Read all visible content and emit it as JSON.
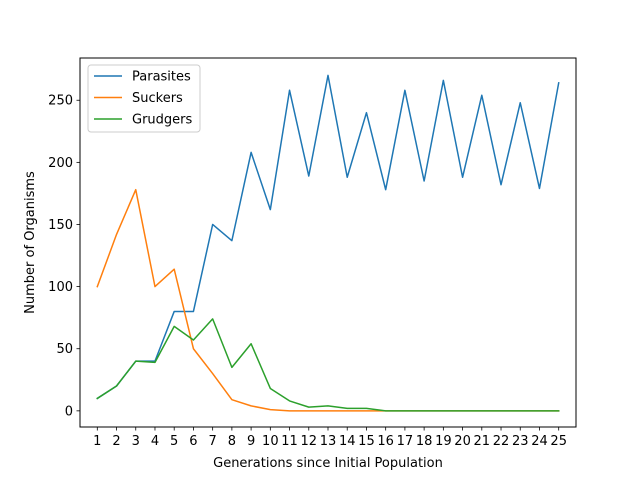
{
  "chart_data": {
    "type": "line",
    "title": "",
    "xlabel": "Generations since Initial Population",
    "ylabel": "Number of Organisms",
    "x": [
      1,
      2,
      3,
      4,
      5,
      6,
      7,
      8,
      9,
      10,
      11,
      12,
      13,
      14,
      15,
      16,
      17,
      18,
      19,
      20,
      21,
      22,
      23,
      24,
      25
    ],
    "xlim": [
      0.1,
      25.9
    ],
    "ylim": [
      -13,
      284
    ],
    "yticks": [
      0,
      50,
      100,
      150,
      200,
      250
    ],
    "grid": false,
    "legend_position": "upper left",
    "series": [
      {
        "name": "Parasites",
        "color": "#1f77b4",
        "values": [
          10,
          20,
          40,
          40,
          80,
          80,
          150,
          137,
          208,
          162,
          258,
          189,
          270,
          188,
          240,
          178,
          258,
          185,
          266,
          188,
          254,
          182,
          248,
          179,
          264
        ]
      },
      {
        "name": "Suckers",
        "color": "#ff7f0e",
        "values": [
          100,
          142,
          178,
          100,
          114,
          50,
          30,
          9,
          4,
          1,
          0,
          0,
          0,
          0,
          0,
          0,
          0,
          0,
          0,
          0,
          0,
          0,
          0,
          0,
          0
        ]
      },
      {
        "name": "Grudgers",
        "color": "#2ca02c",
        "values": [
          10,
          20,
          40,
          39,
          68,
          57,
          74,
          35,
          54,
          18,
          8,
          3,
          4,
          2,
          2,
          0,
          0,
          0,
          0,
          0,
          0,
          0,
          0,
          0,
          0
        ]
      }
    ]
  }
}
